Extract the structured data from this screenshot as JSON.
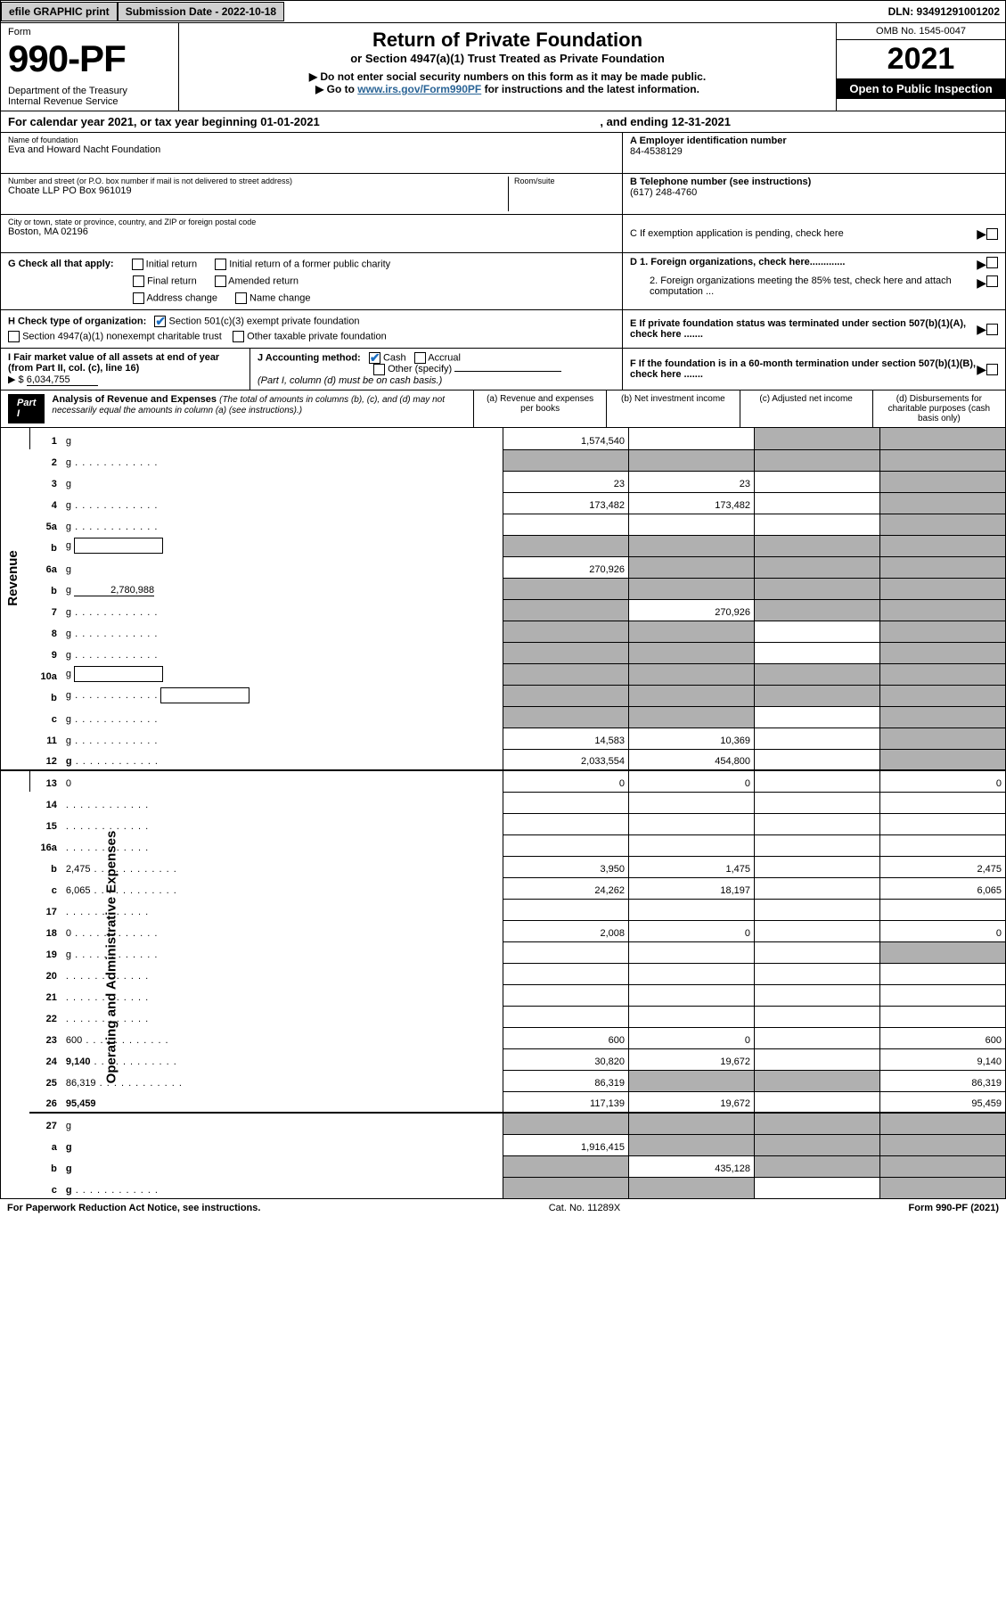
{
  "top": {
    "efile": "efile GRAPHIC print",
    "submission": "Submission Date - 2022-10-18",
    "dln": "DLN: 93491291001202"
  },
  "header": {
    "form_word": "Form",
    "form_no": "990-PF",
    "dept": "Department of the Treasury\nInternal Revenue Service",
    "title": "Return of Private Foundation",
    "subtitle": "or Section 4947(a)(1) Trust Treated as Private Foundation",
    "note1": "▶ Do not enter social security numbers on this form as it may be made public.",
    "note2_pre": "▶ Go to ",
    "note2_link": "www.irs.gov/Form990PF",
    "note2_post": " for instructions and the latest information.",
    "omb": "OMB No. 1545-0047",
    "year": "2021",
    "open": "Open to Public Inspection"
  },
  "cal": {
    "text_a": "For calendar year 2021, or tax year beginning 01-01-2021",
    "text_b": ", and ending 12-31-2021"
  },
  "id": {
    "name_lbl": "Name of foundation",
    "name": "Eva and Howard Nacht Foundation",
    "addr_lbl": "Number and street (or P.O. box number if mail is not delivered to street address)",
    "room_lbl": "Room/suite",
    "addr": "Choate LLP PO Box 961019",
    "city_lbl": "City or town, state or province, country, and ZIP or foreign postal code",
    "city": "Boston, MA  02196",
    "ein_lbl": "A Employer identification number",
    "ein": "84-4538129",
    "tel_lbl": "B Telephone number (see instructions)",
    "tel": "(617) 248-4760",
    "c": "C If exemption application is pending, check here",
    "d1": "D 1. Foreign organizations, check here.............",
    "d2": "2. Foreign organizations meeting the 85% test, check here and attach computation ...",
    "e": "E  If private foundation status was terminated under section 507(b)(1)(A), check here .......",
    "f": "F  If the foundation is in a 60-month termination under section 507(b)(1)(B), check here .......",
    "g_lbl": "G Check all that apply:",
    "g_opts": [
      "Initial return",
      "Initial return of a former public charity",
      "Final return",
      "Amended return",
      "Address change",
      "Name change"
    ],
    "h_lbl": "H Check type of organization:",
    "h1": "Section 501(c)(3) exempt private foundation",
    "h2": "Section 4947(a)(1) nonexempt charitable trust",
    "h3": "Other taxable private foundation",
    "i": "I Fair market value of all assets at end of year (from Part II, col. (c), line 16)",
    "i_val": "6,034,755",
    "j_lbl": "J Accounting method:",
    "j1": "Cash",
    "j2": "Accrual",
    "j3": "Other (specify)",
    "j_note": "(Part I, column (d) must be on cash basis.)"
  },
  "part1": {
    "label": "Part I",
    "title": "Analysis of Revenue and Expenses",
    "title_note": "(The total of amounts in columns (b), (c), and (d) may not necessarily equal the amounts in column (a) (see instructions).)",
    "col_a": "(a)   Revenue and expenses per books",
    "col_b": "(b)   Net investment income",
    "col_c": "(c)   Adjusted net income",
    "col_d": "(d)   Disbursements for charitable purposes (cash basis only)"
  },
  "sides": {
    "rev": "Revenue",
    "exp": "Operating and Administrative Expenses"
  },
  "rows": [
    {
      "n": "1",
      "d": "g",
      "a": "1,574,540",
      "b": "",
      "c": "g"
    },
    {
      "n": "2",
      "d": "g",
      "dots": true,
      "a": "g",
      "b": "g",
      "c": "g"
    },
    {
      "n": "3",
      "d": "g",
      "a": "23",
      "b": "23",
      "c": ""
    },
    {
      "n": "4",
      "d": "g",
      "dots": true,
      "a": "173,482",
      "b": "173,482",
      "c": ""
    },
    {
      "n": "5a",
      "d": "g",
      "dots": true,
      "a": "",
      "b": "",
      "c": ""
    },
    {
      "n": "b",
      "d": "g",
      "inline": true,
      "a": "g",
      "b": "g",
      "c": "g"
    },
    {
      "n": "6a",
      "d": "g",
      "a": "270,926",
      "b": "g",
      "c": "g"
    },
    {
      "n": "b",
      "d": "g",
      "inline_val": "2,780,988",
      "a": "g",
      "b": "g",
      "c": "g"
    },
    {
      "n": "7",
      "d": "g",
      "dots": true,
      "a": "g",
      "b": "270,926",
      "c": "g"
    },
    {
      "n": "8",
      "d": "g",
      "dots": true,
      "a": "g",
      "b": "g",
      "c": ""
    },
    {
      "n": "9",
      "d": "g",
      "dots": true,
      "a": "g",
      "b": "g",
      "c": ""
    },
    {
      "n": "10a",
      "d": "g",
      "inline": true,
      "a": "g",
      "b": "g",
      "c": "g"
    },
    {
      "n": "b",
      "d": "g",
      "dots": true,
      "inline": true,
      "a": "g",
      "b": "g",
      "c": "g"
    },
    {
      "n": "c",
      "d": "g",
      "dots": true,
      "a": "g",
      "b": "g",
      "c": ""
    },
    {
      "n": "11",
      "d": "g",
      "dots": true,
      "a": "14,583",
      "b": "10,369",
      "c": ""
    },
    {
      "n": "12",
      "d": "g",
      "dots": true,
      "bold": true,
      "a": "2,033,554",
      "b": "454,800",
      "c": "",
      "thick": true
    },
    {
      "n": "13",
      "d": "0",
      "a": "0",
      "b": "0",
      "c": ""
    },
    {
      "n": "14",
      "d": "",
      "dots": true,
      "a": "",
      "b": "",
      "c": ""
    },
    {
      "n": "15",
      "d": "",
      "dots": true,
      "a": "",
      "b": "",
      "c": ""
    },
    {
      "n": "16a",
      "d": "",
      "dots": true,
      "a": "",
      "b": "",
      "c": ""
    },
    {
      "n": "b",
      "d": "2,475",
      "dots": true,
      "a": "3,950",
      "b": "1,475",
      "c": ""
    },
    {
      "n": "c",
      "d": "6,065",
      "dots": true,
      "a": "24,262",
      "b": "18,197",
      "c": ""
    },
    {
      "n": "17",
      "d": "",
      "dots": true,
      "a": "",
      "b": "",
      "c": ""
    },
    {
      "n": "18",
      "d": "0",
      "dots": true,
      "a": "2,008",
      "b": "0",
      "c": ""
    },
    {
      "n": "19",
      "d": "g",
      "dots": true,
      "a": "",
      "b": "",
      "c": ""
    },
    {
      "n": "20",
      "d": "",
      "dots": true,
      "a": "",
      "b": "",
      "c": ""
    },
    {
      "n": "21",
      "d": "",
      "dots": true,
      "a": "",
      "b": "",
      "c": ""
    },
    {
      "n": "22",
      "d": "",
      "dots": true,
      "a": "",
      "b": "",
      "c": ""
    },
    {
      "n": "23",
      "d": "600",
      "dots": true,
      "a": "600",
      "b": "0",
      "c": ""
    },
    {
      "n": "24",
      "d": "9,140",
      "dots": true,
      "bold": true,
      "a": "30,820",
      "b": "19,672",
      "c": ""
    },
    {
      "n": "25",
      "d": "86,319",
      "dots": true,
      "a": "86,319",
      "b": "g",
      "c": "g"
    },
    {
      "n": "26",
      "d": "95,459",
      "bold": true,
      "a": "117,139",
      "b": "19,672",
      "c": "",
      "thick": true
    },
    {
      "n": "27",
      "d": "g",
      "a": "g",
      "b": "g",
      "c": "g"
    },
    {
      "n": "a",
      "d": "g",
      "bold": true,
      "a": "1,916,415",
      "b": "g",
      "c": "g"
    },
    {
      "n": "b",
      "d": "g",
      "bold": true,
      "a": "g",
      "b": "435,128",
      "c": "g"
    },
    {
      "n": "c",
      "d": "g",
      "dots": true,
      "bold": true,
      "a": "g",
      "b": "g",
      "c": ""
    }
  ],
  "footer": {
    "left": "For Paperwork Reduction Act Notice, see instructions.",
    "mid": "Cat. No. 11289X",
    "right": "Form 990-PF (2021)"
  }
}
